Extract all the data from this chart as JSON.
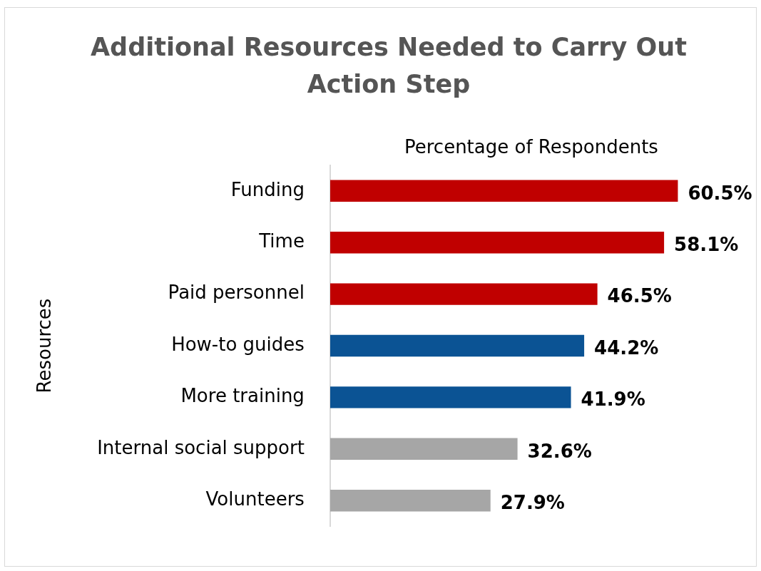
{
  "chart_data": {
    "type": "bar",
    "orientation": "horizontal",
    "title": "Additional Resources Needed to Carry Out Action Step",
    "xlabel": "Percentage of Respondents",
    "ylabel": "Resources",
    "categories": [
      "Funding",
      "Time",
      "Paid personnel",
      "How-to guides",
      "More training",
      "Internal social support",
      "Volunteers"
    ],
    "values": [
      60.5,
      58.1,
      46.5,
      44.2,
      41.9,
      32.6,
      27.9
    ],
    "value_labels": [
      "60.5%",
      "58.1%",
      "46.5%",
      "44.2%",
      "41.9%",
      "32.6%",
      "27.9%"
    ],
    "colors": [
      "#c00000",
      "#c00000",
      "#c00000",
      "#0b5394",
      "#0b5394",
      "#a6a6a6",
      "#a6a6a6"
    ],
    "tick_labels": "y",
    "grid": false,
    "legend": false
  }
}
